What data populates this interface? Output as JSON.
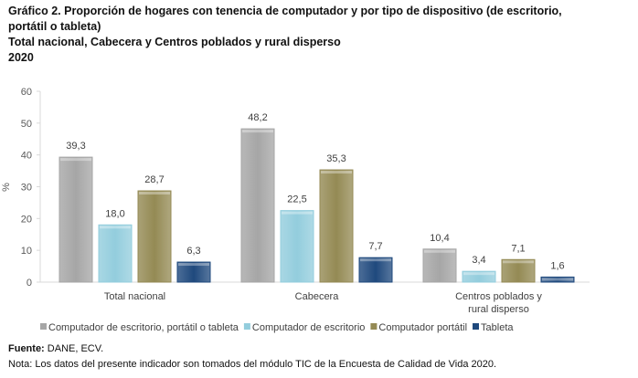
{
  "title_lines": [
    "Gráfico 2. Proporción de hogares con tenencia de computador y por tipo de dispositivo (de escritorio,",
    "portátil o tableta)",
    "Total nacional, Cabecera y Centros poblados y rural disperso",
    "2020"
  ],
  "chart_data": {
    "type": "bar",
    "categories": [
      "Total nacional",
      "Cabecera",
      "Centros poblados y rural disperso"
    ],
    "category_lines": [
      [
        "Total nacional"
      ],
      [
        "Cabecera"
      ],
      [
        "Centros poblados y",
        "rural disperso"
      ]
    ],
    "series": [
      {
        "name": "Computador de escritorio, portátil o tableta",
        "values": [
          39.3,
          48.2,
          10.4
        ],
        "labels": [
          "39,3",
          "48,2",
          "10,4"
        ],
        "color": "#a6a6a6"
      },
      {
        "name": "Computador de escritorio",
        "values": [
          18.0,
          22.5,
          3.4
        ],
        "labels": [
          "18,0",
          "22,5",
          "3,4"
        ],
        "color": "#93cddd"
      },
      {
        "name": "Computador portátil",
        "values": [
          28.7,
          35.3,
          7.1
        ],
        "labels": [
          "28,7",
          "35,3",
          "7,1"
        ],
        "color": "#948a54"
      },
      {
        "name": "Tableta",
        "values": [
          6.3,
          7.7,
          1.6
        ],
        "labels": [
          "6,3",
          "7,7",
          "1,6"
        ],
        "color": "#1f497d"
      }
    ],
    "ylabel": "%",
    "ylim": [
      0,
      60
    ],
    "yticks": [
      0,
      10,
      20,
      30,
      40,
      50,
      60
    ],
    "grid": false,
    "legend": "bottom"
  },
  "footer": {
    "source_label": "Fuente:",
    "source_text": " DANE, ECV.",
    "note": "Nota: Los datos del presente indicador son tomados del módulo TIC de la Encuesta de Calidad de Vida 2020."
  }
}
